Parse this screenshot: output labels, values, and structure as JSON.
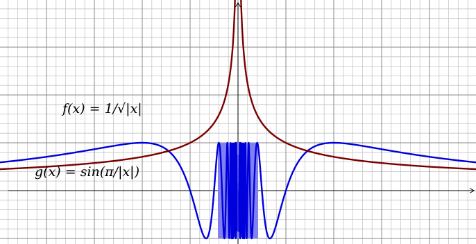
{
  "chart_data": {
    "type": "line",
    "grid": true,
    "xlim": [
      -5.7,
      5.7
    ],
    "ylim": [
      -1.3,
      4.0
    ],
    "grid_step_minor": 0.2,
    "grid_step_major": 1,
    "curves": [
      {
        "label": "f(x) = 1/√|x|",
        "function": "1/sqrt(|x|)",
        "color": "#7a0000",
        "sample_points": [
          {
            "x": 0.25,
            "y": 2.0
          },
          {
            "x": 0.5,
            "y": 1.414
          },
          {
            "x": 1,
            "y": 1.0
          },
          {
            "x": 2,
            "y": 0.707
          },
          {
            "x": 4,
            "y": 0.5
          },
          {
            "x": 5.7,
            "y": 0.419
          }
        ]
      },
      {
        "label": "g(x) = sin(π/|x|)",
        "function": "sin(pi/|x|)",
        "color": "#0000dd",
        "fill_color": "#8080f0",
        "sample_points": [
          {
            "x": 0.25,
            "y": 0
          },
          {
            "x": 0.5,
            "y": 0
          },
          {
            "x": 1,
            "y": 0
          },
          {
            "x": 2,
            "y": 1
          },
          {
            "x": 4,
            "y": 0.707
          },
          {
            "x": 5.7,
            "y": 0.524
          }
        ]
      }
    ]
  }
}
